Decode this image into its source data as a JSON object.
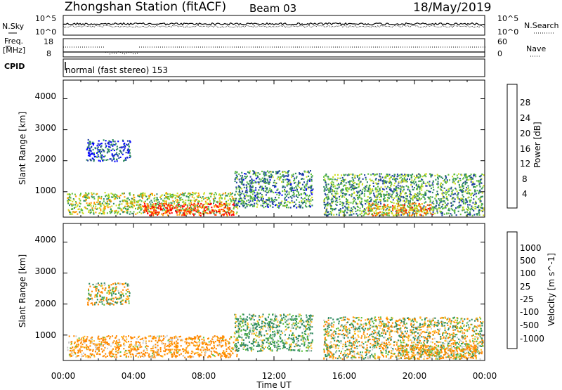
{
  "header": {
    "station": "Zhongshan Station (fitACF)",
    "beam": "Beam 03",
    "date": "18/May/2019"
  },
  "strip1": {
    "left_label": "N.Sky",
    "left_ticks": [
      "10^5",
      "10^0"
    ],
    "right_ticks": [
      "10^5",
      "10^0"
    ],
    "right_label": "N.Search"
  },
  "strip2": {
    "left_label_1": "Freq.",
    "left_label_2": "[MHz]",
    "left_ticks": [
      "18",
      "8"
    ],
    "right_ticks": [
      "60",
      "0"
    ],
    "right_label": "Nave"
  },
  "cpid": {
    "label": "CPID",
    "text": "normal (fast stereo) 153"
  },
  "axes": {
    "ylabel": "Slant Range [km]",
    "yticks": [
      "4000",
      "3000",
      "2000",
      "1000"
    ],
    "xticks": [
      "00:00",
      "04:00",
      "08:00",
      "12:00",
      "16:00",
      "20:00",
      "00:00"
    ],
    "xlabel": "Time UT"
  },
  "chart_data": [
    {
      "type": "heatmap",
      "title": "",
      "xlabel": "Time UT",
      "ylabel": "Slant Range [km]",
      "xlim": [
        "00:00",
        "00:00"
      ],
      "ylim": [
        180,
        4600
      ],
      "colorbar": {
        "label": "Power [dB]",
        "ticks": [
          4,
          8,
          12,
          16,
          20,
          24,
          28
        ],
        "colors": [
          "#0000ff",
          "#1f3f9f",
          "#2e8a60",
          "#5fbf3f",
          "#ccdd22",
          "#ff9900",
          "#ff5500",
          "#ff0000"
        ]
      },
      "regions": [
        {
          "t": [
            0.2,
            9.9
          ],
          "r": [
            300,
            1000
          ],
          "level": 16
        },
        {
          "t": [
            4.5,
            9.7
          ],
          "r": [
            250,
            650
          ],
          "level": 28
        },
        {
          "t": [
            1.3,
            3.8
          ],
          "r": [
            2000,
            2700
          ],
          "level": 6
        },
        {
          "t": [
            9.7,
            14.2
          ],
          "r": [
            500,
            1700
          ],
          "level": 10
        },
        {
          "t": [
            14.8,
            23.9
          ],
          "r": [
            250,
            1600
          ],
          "level": 12
        },
        {
          "t": [
            17.3,
            21.0
          ],
          "r": [
            250,
            650
          ],
          "level": 22
        }
      ]
    },
    {
      "type": "heatmap",
      "title": "",
      "xlabel": "Time UT",
      "ylabel": "Slant Range [km]",
      "xlim": [
        "00:00",
        "00:00"
      ],
      "ylim": [
        180,
        4600
      ],
      "colorbar": {
        "label": "Velocity [m s^-1]",
        "ticks": [
          1000,
          500,
          100,
          25,
          -25,
          -100,
          -500,
          -1000
        ],
        "colors": [
          "#1e40c8",
          "#2a6a8a",
          "#2e8a60",
          "#5fbf3f",
          "#cccccc",
          "#ffbb22",
          "#ff8800",
          "#ff4400",
          "#ff0000"
        ]
      },
      "regions": [
        {
          "t": [
            0.2,
            9.9
          ],
          "r": [
            300,
            1000
          ],
          "level": -200
        },
        {
          "t": [
            1.3,
            3.8
          ],
          "r": [
            2000,
            2700
          ],
          "level": 0
        },
        {
          "t": [
            9.7,
            14.2
          ],
          "r": [
            500,
            1700
          ],
          "level": 150
        },
        {
          "t": [
            14.8,
            23.9
          ],
          "r": [
            250,
            1600
          ],
          "level": 0
        },
        {
          "t": [
            19.0,
            23.5
          ],
          "r": [
            250,
            700
          ],
          "level": -150
        }
      ]
    }
  ]
}
